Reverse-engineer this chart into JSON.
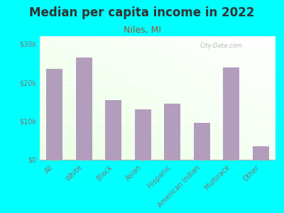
{
  "title": "Median per capita income in 2022",
  "subtitle": "Niles, MI",
  "categories": [
    "All",
    "White",
    "Black",
    "Asian",
    "Hispanic",
    "American Indian",
    "Multirace",
    "Other"
  ],
  "values": [
    23500,
    26500,
    15500,
    13000,
    14500,
    9500,
    24000,
    3500
  ],
  "bar_color": "#b39dbd",
  "background_outer": "#00ffff",
  "title_color": "#333333",
  "subtitle_color": "#a0522d",
  "tick_label_color": "#7a7a7a",
  "watermark_text": "City-Data.com",
  "ylim": [
    0,
    32000
  ],
  "yticks": [
    0,
    10000,
    20000,
    30000
  ],
  "ytick_labels": [
    "$0",
    "$10k",
    "$20k",
    "$30k"
  ],
  "title_fontsize": 12,
  "subtitle_fontsize": 9,
  "tick_fontsize": 7
}
